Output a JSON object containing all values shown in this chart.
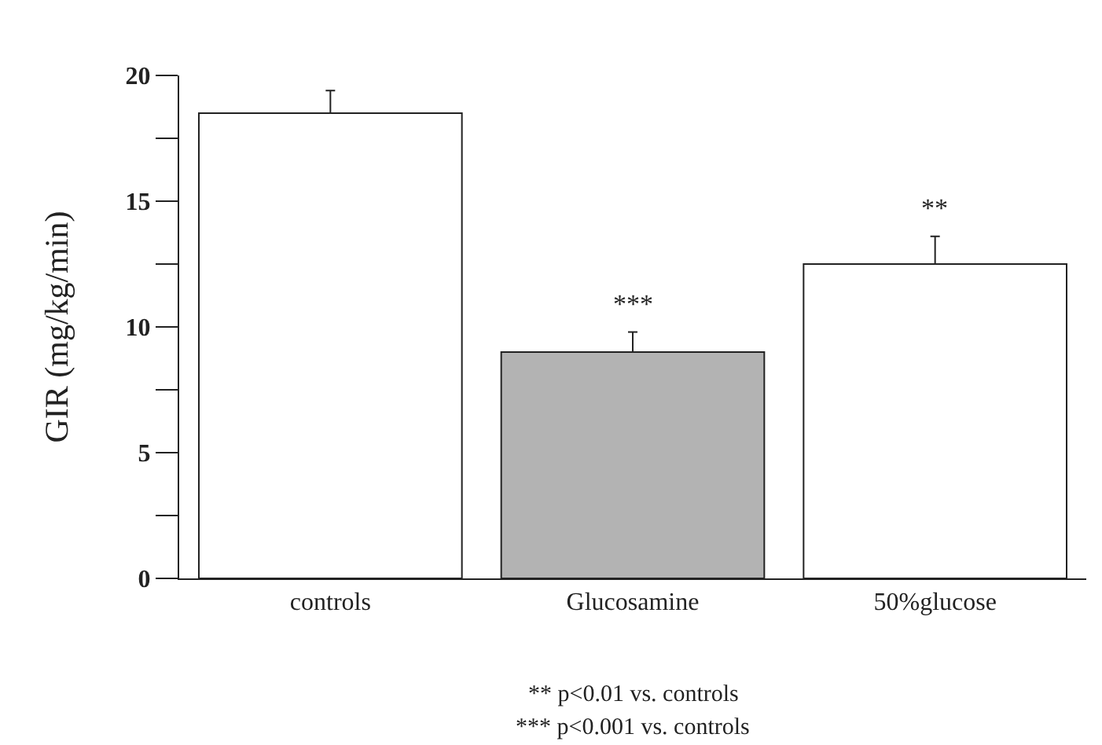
{
  "chart_data": {
    "type": "bar",
    "ylabel": "GIR (mg/kg/min)",
    "categories": [
      "controls",
      "Glucosamine",
      "50%glucose"
    ],
    "values": [
      18.5,
      9.0,
      12.5
    ],
    "colors": [
      "#ffffff",
      "#b3b3b3",
      "#ffffff"
    ],
    "errors": [
      [
        18.5,
        19.4
      ],
      [
        9.0,
        9.8
      ],
      [
        12.5,
        13.6
      ]
    ],
    "ylim": [
      0,
      20
    ],
    "yticks": [
      0,
      {
        "value": 2.5,
        "label": null
      },
      5,
      {
        "value": 7.5,
        "label": null
      },
      10,
      {
        "value": 12.5,
        "label": null
      },
      15,
      {
        "value": 17.5,
        "label": null
      },
      20
    ],
    "value_labels": [
      null,
      "***",
      "**"
    ],
    "annotations": [
      "** p<0.01 vs. controls",
      "*** p<0.001 vs. controls"
    ]
  }
}
